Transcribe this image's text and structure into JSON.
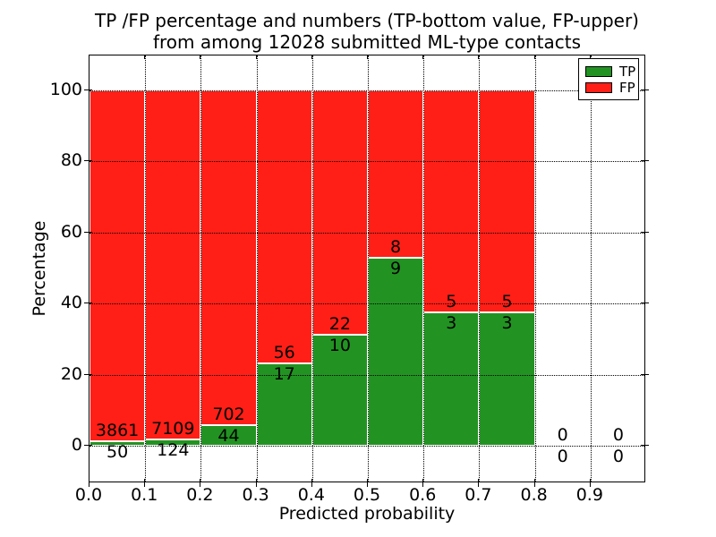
{
  "figure": {
    "title_lines": [
      "TP /FP percentage and numbers (TP-bottom value, FP-upper)",
      "from among 12028 submitted ML-type contacts"
    ]
  },
  "chart_data": {
    "type": "bar",
    "stacked": true,
    "normalized_to_percent": true,
    "title": "TP /FP percentage and numbers (TP-bottom value, FP-upper) from among 12028 submitted ML-type contacts",
    "total_contacts": 12028,
    "xlabel": "Predicted probability",
    "ylabel": "Percentage",
    "bin_width": 0.1,
    "bin_starts": [
      0.0,
      0.1,
      0.2,
      0.3,
      0.4,
      0.5,
      0.6,
      0.7,
      0.8,
      0.9
    ],
    "series": [
      {
        "name": "TP",
        "color": "#229322",
        "values": [
          50,
          124,
          44,
          17,
          10,
          9,
          3,
          3,
          0,
          0
        ]
      },
      {
        "name": "FP",
        "color": "#ff1f17",
        "values": [
          3861,
          7109,
          702,
          56,
          22,
          8,
          5,
          5,
          0,
          0
        ]
      }
    ],
    "bar_edge_color": "#ffffff",
    "xticks": [
      0.0,
      0.1,
      0.2,
      0.3,
      0.4,
      0.5,
      0.6,
      0.7,
      0.8,
      0.9
    ],
    "yticks": [
      0,
      20,
      40,
      60,
      80,
      100
    ],
    "xlim": [
      0.0,
      1.0
    ],
    "ylim": [
      -10.6,
      109.8
    ],
    "grid": true,
    "grid_style": "dotted",
    "legend": {
      "position": "upper right",
      "entries": [
        "TP",
        "FP"
      ]
    }
  }
}
